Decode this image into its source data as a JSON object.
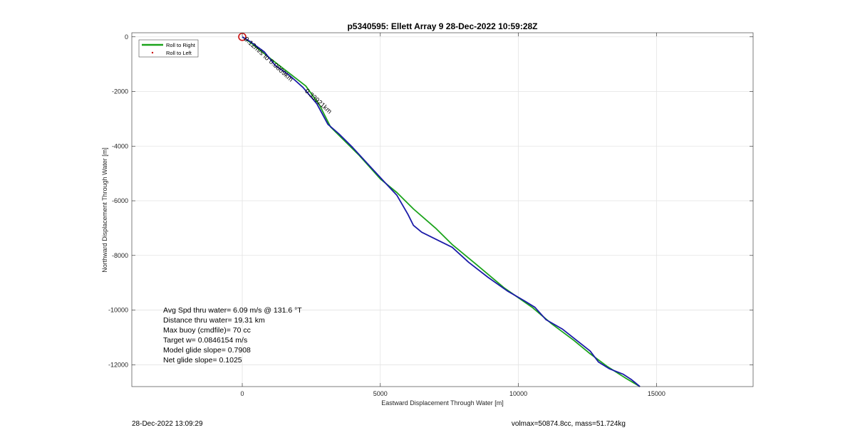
{
  "chart_data": {
    "type": "line",
    "title": "p5340595: Ellett Array 9 28-Dec-2022 10:59:28Z",
    "xlabel": "Eastward Displacement Through Water [m]",
    "ylabel": "Northward Displacement Through Water [m]",
    "xlim": [
      -4000,
      18500
    ],
    "ylim": [
      -12800,
      150
    ],
    "xticks": [
      0,
      5000,
      10000,
      15000
    ],
    "yticks": [
      0,
      -2000,
      -4000,
      -6000,
      -8000,
      -10000,
      -12000
    ],
    "grid": true,
    "legend": {
      "placement": "top-left",
      "entries": [
        "Roll to Right",
        "Roll to Left"
      ]
    },
    "series": [
      {
        "name": "Roll to Right",
        "color": "#1aa31a",
        "x": [
          0,
          350,
          900,
          1600,
          2300,
          2800,
          3200,
          4200,
          5000,
          5600,
          6200,
          7000,
          7600,
          8500,
          9500,
          10500,
          11200,
          12000,
          12600,
          13200,
          13900,
          14400
        ],
        "y": [
          0,
          -250,
          -700,
          -1250,
          -1800,
          -2500,
          -3300,
          -4300,
          -5200,
          -5700,
          -6300,
          -7000,
          -7600,
          -8350,
          -9200,
          -9900,
          -10500,
          -11100,
          -11600,
          -12050,
          -12500,
          -12800
        ]
      },
      {
        "name": "",
        "color": "#1a1aa8",
        "x": [
          0,
          300,
          800,
          1200,
          1700,
          2200,
          2700,
          3100,
          3500,
          4000,
          4500,
          5000,
          5600,
          6000,
          6200,
          6500,
          7000,
          7600,
          8200,
          8900,
          9600,
          10200,
          10600,
          11000,
          11600,
          12100,
          12600,
          12900,
          13300,
          13800,
          14100,
          14400
        ],
        "y": [
          0,
          -180,
          -550,
          -1050,
          -1400,
          -1850,
          -2450,
          -3200,
          -3550,
          -4050,
          -4600,
          -5150,
          -5800,
          -6500,
          -6900,
          -7150,
          -7400,
          -7700,
          -8250,
          -8800,
          -9300,
          -9650,
          -9900,
          -10350,
          -10700,
          -11100,
          -11500,
          -11900,
          -12150,
          -12350,
          -12550,
          -12800
        ]
      }
    ],
    "start_marker": {
      "x": 0,
      "y": 0,
      "color": "#cc1111"
    },
    "annotations": [
      {
        "text": "0.12m/s to 0.0809km",
        "x": 0,
        "y": 0,
        "angle": 42
      },
      {
        "text": "0.33921km",
        "x": 2200,
        "y": -1900,
        "angle": 42
      }
    ]
  },
  "stats": [
    "Avg Spd thru water=  6.09 m/s @ 131.6 °T",
    "Distance thru water= 19.31 km",
    "Max buoy (cmdfile)= 70 cc",
    "Target w= 0.0846154 m/s",
    "Model glide slope= 0.7908",
    "Net glide slope= 0.1025"
  ],
  "footer": {
    "left": "28-Dec-2022 13:09:29",
    "right": "volmax=50874.8cc, mass=51.724kg"
  }
}
